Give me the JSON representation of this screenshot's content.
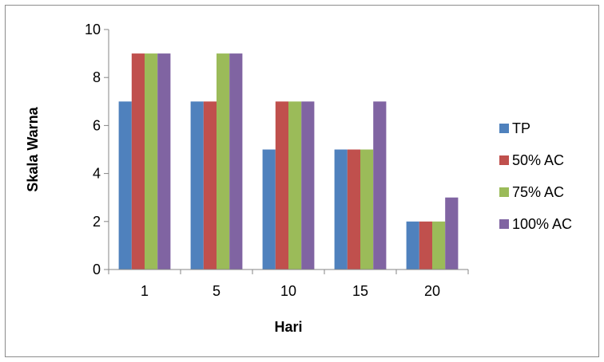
{
  "chart_data": {
    "type": "bar",
    "title": "",
    "xlabel": "Hari",
    "ylabel": "Skala Warna",
    "categories": [
      "1",
      "5",
      "10",
      "15",
      "20"
    ],
    "ylim": [
      0,
      10
    ],
    "yticks": [
      "0",
      "2",
      "4",
      "6",
      "8",
      "10"
    ],
    "grid": false,
    "legend_position": "right",
    "series": [
      {
        "name": "TP",
        "color": "#4f81bd",
        "values": [
          7,
          7,
          5,
          5,
          2
        ]
      },
      {
        "name": "50% AC",
        "color": "#c0504d",
        "values": [
          9,
          7,
          7,
          5,
          2
        ]
      },
      {
        "name": "75% AC",
        "color": "#9bbb59",
        "values": [
          9,
          9,
          7,
          5,
          2
        ]
      },
      {
        "name": "100% AC",
        "color": "#8064a2",
        "values": [
          9,
          9,
          7,
          7,
          3
        ]
      }
    ]
  }
}
